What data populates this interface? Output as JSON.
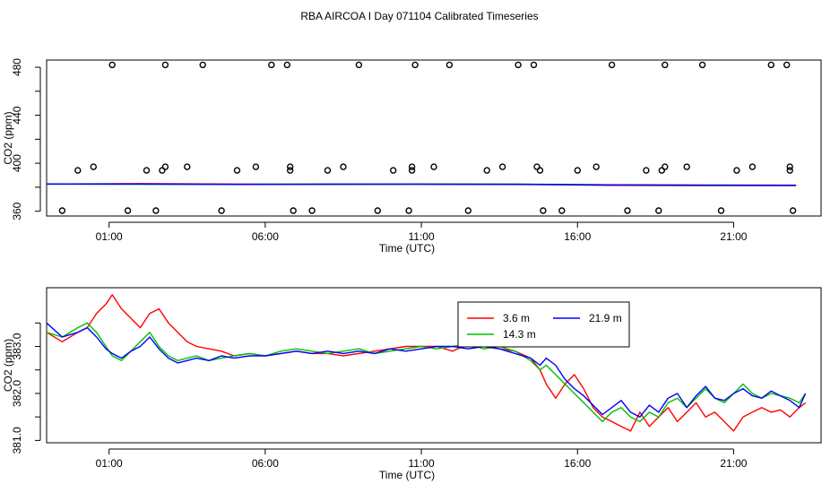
{
  "figure": {
    "title": "RBA AIRCOA I  Day 071104  Calibrated Timeseries"
  },
  "chart_data": [
    {
      "type": "scatter",
      "title": "",
      "xlabel": "Time (UTC)",
      "ylabel": "CO2 (ppm)",
      "x_unit": "hours UTC",
      "xlim": [
        -1.0,
        23.8
      ],
      "ylim": [
        356,
        486
      ],
      "x_tick_values": [
        1,
        6,
        11,
        16,
        21
      ],
      "x_tick_labels": [
        "01:00",
        "06:00",
        "11:00",
        "16:00",
        "21:00"
      ],
      "y_ticks": [
        360,
        380,
        400,
        420,
        440,
        460,
        480
      ],
      "y_tick_labels": [
        "360",
        "",
        "400",
        "",
        "440",
        "",
        "480"
      ],
      "grid": false,
      "legend": "none",
      "points": [
        [
          -0.5,
          360.5
        ],
        [
          0.0,
          394
        ],
        [
          0.5,
          397
        ],
        [
          1.1,
          482
        ],
        [
          1.6,
          360.5
        ],
        [
          2.2,
          394
        ],
        [
          2.5,
          360.5
        ],
        [
          2.7,
          394
        ],
        [
          2.8,
          397
        ],
        [
          2.8,
          482
        ],
        [
          3.5,
          397
        ],
        [
          4.0,
          482
        ],
        [
          4.6,
          360.5
        ],
        [
          5.1,
          394
        ],
        [
          5.7,
          397
        ],
        [
          6.2,
          482
        ],
        [
          6.7,
          482
        ],
        [
          6.8,
          397
        ],
        [
          6.8,
          394
        ],
        [
          6.9,
          360.5
        ],
        [
          7.5,
          360.5
        ],
        [
          8.0,
          394
        ],
        [
          8.5,
          397
        ],
        [
          9.0,
          482
        ],
        [
          9.6,
          360.5
        ],
        [
          10.1,
          394
        ],
        [
          10.6,
          360.5
        ],
        [
          10.7,
          394
        ],
        [
          10.7,
          397
        ],
        [
          10.8,
          482
        ],
        [
          11.4,
          397
        ],
        [
          11.9,
          482
        ],
        [
          12.5,
          360.5
        ],
        [
          13.1,
          394
        ],
        [
          13.6,
          397
        ],
        [
          14.1,
          482
        ],
        [
          14.6,
          482
        ],
        [
          14.7,
          397
        ],
        [
          14.8,
          394
        ],
        [
          14.9,
          360.5
        ],
        [
          15.5,
          360.5
        ],
        [
          16.0,
          394
        ],
        [
          16.6,
          397
        ],
        [
          17.1,
          482
        ],
        [
          17.6,
          360.5
        ],
        [
          18.2,
          394
        ],
        [
          18.6,
          360.5
        ],
        [
          18.7,
          394
        ],
        [
          18.8,
          397
        ],
        [
          18.8,
          482
        ],
        [
          19.5,
          397
        ],
        [
          20.0,
          482
        ],
        [
          20.6,
          360.5
        ],
        [
          21.1,
          394
        ],
        [
          21.6,
          397
        ],
        [
          22.2,
          482
        ],
        [
          22.7,
          482
        ],
        [
          22.8,
          397
        ],
        [
          22.8,
          394
        ],
        [
          22.9,
          360.5
        ]
      ],
      "series": [
        {
          "color": "#ff0000",
          "x": [
            -1.0,
            2.0,
            5.0,
            8.0,
            11.0,
            14.0,
            17.0,
            20.0,
            23.0
          ],
          "values": [
            382.6,
            383.0,
            382.6,
            382.4,
            382.6,
            382.5,
            381.6,
            381.4,
            381.4
          ]
        },
        {
          "color": "#00c000",
          "x": [
            -1.0,
            2.0,
            5.0,
            8.0,
            11.0,
            14.0,
            17.0,
            20.0,
            23.0
          ],
          "values": [
            382.6,
            382.5,
            382.3,
            382.6,
            382.5,
            382.6,
            381.9,
            381.8,
            381.7
          ]
        },
        {
          "color": "#0000ff",
          "x": [
            -1.0,
            2.0,
            5.0,
            8.0,
            11.0,
            14.0,
            17.0,
            20.0,
            23.0
          ],
          "values": [
            382.7,
            382.6,
            382.4,
            382.5,
            382.5,
            382.4,
            381.9,
            381.7,
            381.6
          ]
        }
      ]
    },
    {
      "type": "line",
      "title": "",
      "xlabel": "Time (UTC)",
      "ylabel": "CO2 (ppm)",
      "x_unit": "hours UTC",
      "xlim": [
        -1.0,
        23.8
      ],
      "ylim": [
        380.95,
        384.25
      ],
      "x_tick_values": [
        1,
        6,
        11,
        16,
        21
      ],
      "x_tick_labels": [
        "01:00",
        "06:00",
        "11:00",
        "16:00",
        "21:00"
      ],
      "y_ticks": [
        381.0,
        381.5,
        382.0,
        382.5,
        383.0,
        383.5
      ],
      "y_tick_labels": [
        "381.0",
        "",
        "382.0",
        "",
        "383.0",
        ""
      ],
      "grid": false,
      "legend": "top-center",
      "series": [
        {
          "name": "3.6 m",
          "color": "#ff0000",
          "x": [
            -1.0,
            -0.5,
            0.0,
            0.3,
            0.6,
            0.9,
            1.1,
            1.4,
            1.7,
            2.0,
            2.3,
            2.6,
            2.9,
            3.2,
            3.5,
            3.8,
            4.2,
            4.6,
            5.0,
            5.5,
            6.0,
            6.5,
            7.0,
            7.5,
            8.0,
            8.5,
            9.0,
            9.5,
            10.0,
            10.5,
            11.0,
            11.5,
            12.0,
            12.5,
            13.0,
            13.5,
            14.0,
            14.5,
            14.8,
            15.0,
            15.3,
            15.6,
            15.9,
            16.2,
            16.5,
            16.8,
            17.1,
            17.4,
            17.7,
            18.0,
            18.3,
            18.6,
            18.9,
            19.2,
            19.5,
            19.8,
            20.1,
            20.4,
            20.7,
            21.0,
            21.3,
            21.6,
            21.9,
            22.2,
            22.5,
            22.8,
            23.1,
            23.3
          ],
          "values": [
            383.3,
            383.1,
            383.3,
            383.4,
            383.7,
            383.9,
            384.1,
            383.8,
            383.6,
            383.4,
            383.7,
            383.8,
            383.5,
            383.3,
            383.1,
            383.0,
            382.95,
            382.9,
            382.8,
            382.85,
            382.8,
            382.85,
            382.9,
            382.85,
            382.85,
            382.8,
            382.85,
            382.9,
            382.95,
            383.0,
            383.0,
            383.0,
            382.9,
            383.05,
            383.0,
            382.95,
            382.9,
            382.75,
            382.5,
            382.2,
            381.9,
            382.2,
            382.4,
            382.1,
            381.7,
            381.5,
            381.4,
            381.3,
            381.2,
            381.6,
            381.3,
            381.5,
            381.7,
            381.4,
            381.6,
            381.8,
            381.5,
            381.6,
            381.4,
            381.2,
            381.5,
            381.6,
            381.7,
            381.6,
            381.65,
            381.5,
            381.7,
            381.8
          ]
        },
        {
          "name": "14.3 m",
          "color": "#00c000",
          "x": [
            -1.0,
            -0.5,
            0.0,
            0.3,
            0.6,
            0.9,
            1.1,
            1.4,
            1.7,
            2.0,
            2.3,
            2.6,
            2.9,
            3.2,
            3.5,
            3.8,
            4.2,
            4.6,
            5.0,
            5.5,
            6.0,
            6.5,
            7.0,
            7.5,
            8.0,
            8.5,
            9.0,
            9.5,
            10.0,
            10.5,
            11.0,
            11.5,
            12.0,
            12.5,
            13.0,
            13.5,
            14.0,
            14.5,
            14.8,
            15.0,
            15.3,
            15.6,
            15.9,
            16.2,
            16.5,
            16.8,
            17.1,
            17.4,
            17.7,
            18.0,
            18.3,
            18.6,
            18.9,
            19.2,
            19.5,
            19.8,
            20.1,
            20.4,
            20.7,
            21.0,
            21.3,
            21.6,
            21.9,
            22.2,
            22.5,
            22.8,
            23.1,
            23.3
          ],
          "values": [
            383.3,
            383.2,
            383.4,
            383.5,
            383.3,
            383.0,
            382.8,
            382.7,
            382.9,
            383.1,
            383.3,
            383.0,
            382.8,
            382.7,
            382.75,
            382.8,
            382.7,
            382.75,
            382.8,
            382.85,
            382.8,
            382.9,
            382.95,
            382.9,
            382.85,
            382.9,
            382.95,
            382.85,
            382.9,
            382.95,
            383.0,
            382.95,
            383.0,
            383.05,
            382.95,
            383.0,
            382.9,
            382.7,
            382.5,
            382.6,
            382.4,
            382.2,
            382.0,
            381.8,
            381.6,
            381.4,
            381.6,
            381.7,
            381.5,
            381.4,
            381.6,
            381.5,
            381.8,
            381.9,
            381.7,
            381.9,
            382.1,
            381.9,
            381.8,
            382.0,
            382.2,
            382.0,
            381.9,
            382.0,
            381.95,
            381.9,
            381.8,
            382.0
          ]
        },
        {
          "name": "21.9 m",
          "color": "#0000ff",
          "x": [
            -1.0,
            -0.5,
            0.0,
            0.3,
            0.6,
            0.9,
            1.1,
            1.4,
            1.7,
            2.0,
            2.3,
            2.6,
            2.9,
            3.2,
            3.5,
            3.8,
            4.2,
            4.6,
            5.0,
            5.5,
            6.0,
            6.5,
            7.0,
            7.5,
            8.0,
            8.5,
            9.0,
            9.5,
            10.0,
            10.5,
            11.0,
            11.5,
            12.0,
            12.5,
            13.0,
            13.5,
            14.0,
            14.5,
            14.8,
            15.0,
            15.3,
            15.6,
            15.9,
            16.2,
            16.5,
            16.8,
            17.1,
            17.4,
            17.7,
            18.0,
            18.3,
            18.6,
            18.9,
            19.2,
            19.5,
            19.8,
            20.1,
            20.4,
            20.7,
            21.0,
            21.3,
            21.6,
            21.9,
            22.2,
            22.5,
            22.8,
            23.1,
            23.3
          ],
          "values": [
            383.5,
            383.2,
            383.3,
            383.4,
            383.2,
            382.95,
            382.85,
            382.75,
            382.9,
            383.0,
            383.2,
            382.95,
            382.75,
            382.65,
            382.7,
            382.75,
            382.7,
            382.8,
            382.75,
            382.8,
            382.8,
            382.85,
            382.9,
            382.85,
            382.9,
            382.85,
            382.9,
            382.85,
            382.95,
            382.9,
            382.95,
            383.0,
            383.0,
            382.95,
            383.0,
            382.95,
            382.85,
            382.75,
            382.6,
            382.75,
            382.6,
            382.3,
            382.1,
            381.95,
            381.75,
            381.55,
            381.7,
            381.85,
            381.6,
            381.5,
            381.75,
            381.6,
            381.9,
            382.0,
            381.7,
            381.95,
            382.15,
            381.9,
            381.85,
            382.0,
            382.1,
            381.95,
            381.9,
            382.05,
            381.95,
            381.85,
            381.7,
            382.0
          ]
        }
      ]
    }
  ]
}
